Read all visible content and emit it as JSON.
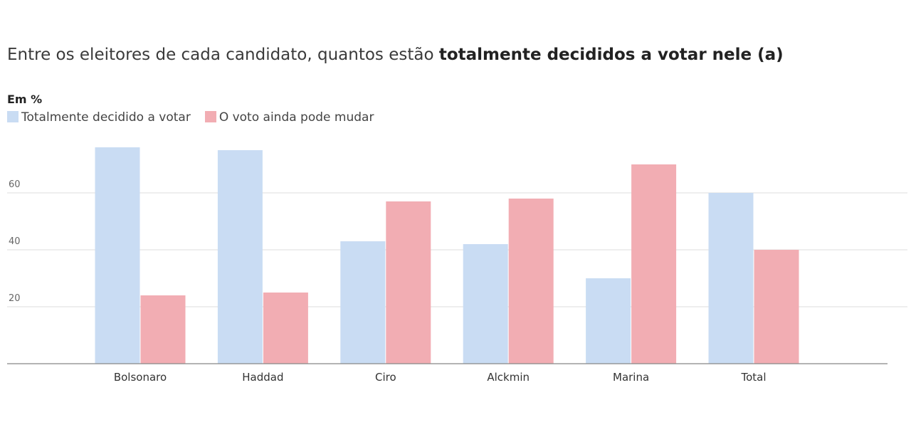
{
  "title": {
    "prefix": "Entre os eleitores de cada candidato, quantos estão ",
    "emphasis": "totalmente decididos a votar nele (a)"
  },
  "unit_label": "Em %",
  "colors": {
    "decided": "#c9dcf3",
    "may_change": "#f2adb3",
    "grid": "#dddddd",
    "axis": "#888888"
  },
  "chart_data": {
    "type": "bar",
    "title": "Entre os eleitores de cada candidato, quantos estão totalmente decididos a votar nele (a)",
    "ylabel": "Em %",
    "categories": [
      "Bolsonaro",
      "Haddad",
      "Ciro",
      "Alckmin",
      "Marina",
      "Total"
    ],
    "series": [
      {
        "name": "Totalmente decidido a votar",
        "values": [
          76,
          75,
          43,
          42,
          30,
          60
        ]
      },
      {
        "name": "O voto ainda pode mudar",
        "values": [
          24,
          25,
          57,
          58,
          70,
          40
        ]
      }
    ],
    "ylim": [
      0,
      76
    ],
    "yticks": [
      20,
      40,
      60
    ],
    "grid": true,
    "legend_position": "top-left"
  }
}
